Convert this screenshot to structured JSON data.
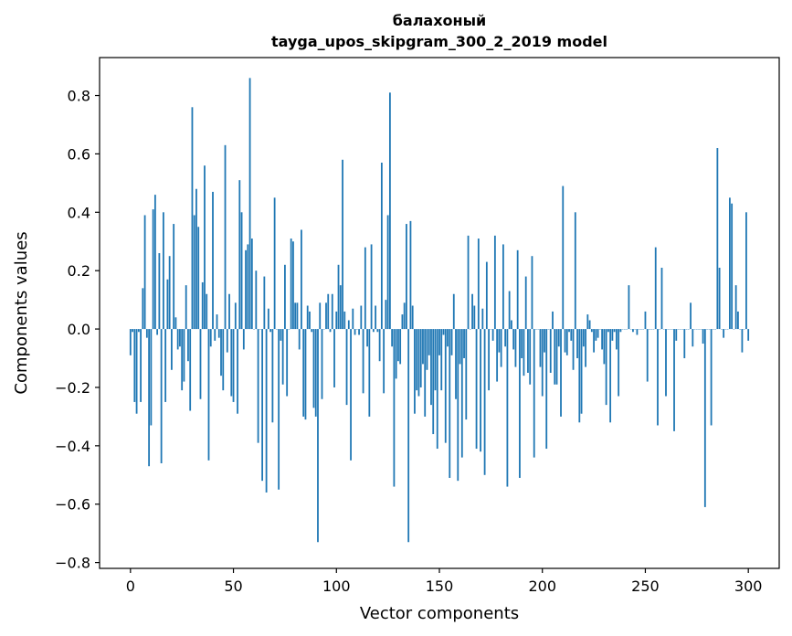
{
  "chart_data": {
    "type": "bar",
    "title": "балахоный",
    "subtitle": "tayga_upos_skipgram_300_2_2019 model",
    "xlabel": "Vector components",
    "ylabel": "Components values",
    "xlim": [
      -15,
      315
    ],
    "ylim": [
      -0.82,
      0.93
    ],
    "xticks": [
      0,
      50,
      100,
      150,
      200,
      250,
      300
    ],
    "yticks": [
      -0.8,
      -0.6,
      -0.4,
      -0.2,
      0.0,
      0.2,
      0.4,
      0.6,
      0.8
    ],
    "xtick_labels": [
      "0",
      "50",
      "100",
      "150",
      "200",
      "250",
      "300"
    ],
    "ytick_labels": [
      "−0.8",
      "−0.6",
      "−0.4",
      "−0.2",
      "0.0",
      "0.2",
      "0.4",
      "0.6",
      "0.8"
    ],
    "bar_color": "#1f77b4",
    "grid": false,
    "series": [
      {
        "values": [
          -0.09,
          -0.01,
          -0.25,
          -0.29,
          -0.01,
          -0.25,
          0.14,
          0.39,
          -0.03,
          -0.47,
          -0.33,
          0.41,
          0.46,
          -0.02,
          0.26,
          -0.46,
          0.4,
          -0.25,
          0.17,
          0.25,
          -0.14,
          0.36,
          0.04,
          -0.07,
          -0.06,
          -0.21,
          -0.18,
          0.15,
          -0.11,
          -0.28,
          0.76,
          0.39,
          0.48,
          0.35,
          -0.24,
          0.16,
          0.56,
          0.12,
          -0.45,
          -0.06,
          0.47,
          -0.04,
          0.05,
          -0.03,
          -0.16,
          -0.21,
          0.63,
          -0.08,
          0.12,
          -0.23,
          -0.25,
          0.09,
          -0.29,
          0.51,
          0.4,
          -0.07,
          0.27,
          0.29,
          0.86,
          0.31,
          0.0,
          0.2,
          -0.39,
          0.0,
          -0.52,
          0.18,
          -0.56,
          0.07,
          -0.01,
          -0.32,
          0.45,
          0.0,
          -0.55,
          -0.04,
          -0.19,
          0.22,
          -0.23,
          0.0,
          0.31,
          0.3,
          0.09,
          0.09,
          -0.07,
          0.34,
          -0.3,
          -0.31,
          0.08,
          0.06,
          -0.01,
          -0.27,
          -0.3,
          -0.73,
          0.09,
          -0.24,
          0.0,
          0.09,
          0.12,
          -0.01,
          0.12,
          -0.2,
          0.06,
          0.22,
          0.15,
          0.58,
          0.06,
          -0.26,
          0.03,
          -0.45,
          0.07,
          -0.02,
          0.0,
          -0.02,
          0.08,
          -0.22,
          0.28,
          -0.06,
          -0.3,
          0.29,
          -0.01,
          0.08,
          -0.01,
          -0.11,
          0.57,
          -0.22,
          0.1,
          0.39,
          0.81,
          -0.06,
          -0.54,
          -0.17,
          -0.11,
          -0.12,
          0.05,
          0.09,
          0.36,
          -0.73,
          0.37,
          0.08,
          -0.29,
          -0.21,
          -0.23,
          -0.2,
          -0.12,
          -0.3,
          -0.14,
          -0.09,
          -0.26,
          -0.36,
          -0.21,
          -0.41,
          -0.09,
          -0.21,
          -0.02,
          -0.39,
          -0.06,
          -0.51,
          -0.09,
          0.12,
          -0.24,
          -0.52,
          -0.12,
          -0.44,
          -0.1,
          -0.31,
          0.32,
          0.0,
          0.12,
          0.08,
          -0.41,
          0.31,
          -0.42,
          0.07,
          -0.5,
          0.23,
          -0.21,
          0.0,
          -0.04,
          0.32,
          -0.18,
          -0.08,
          -0.13,
          0.29,
          -0.06,
          -0.54,
          0.13,
          0.03,
          -0.07,
          -0.13,
          0.27,
          -0.51,
          -0.1,
          -0.16,
          0.18,
          -0.15,
          -0.19,
          0.25,
          -0.44,
          0.0,
          0.0,
          -0.13,
          -0.23,
          -0.08,
          -0.41,
          0.0,
          -0.15,
          0.06,
          -0.19,
          -0.19,
          -0.06,
          -0.3,
          0.49,
          -0.08,
          -0.09,
          -0.01,
          -0.04,
          -0.14,
          0.4,
          -0.1,
          -0.32,
          -0.29,
          -0.06,
          -0.13,
          0.05,
          0.03,
          -0.01,
          -0.08,
          -0.04,
          -0.03,
          0.0,
          -0.07,
          -0.12,
          -0.26,
          -0.01,
          -0.32,
          -0.04,
          -0.01,
          -0.07,
          -0.23,
          -0.01,
          0.0,
          0.0,
          0.0,
          0.15,
          0.0,
          -0.01,
          0.0,
          -0.02,
          0.0,
          0.0,
          0.0,
          0.06,
          -0.18,
          0.0,
          0.0,
          0.0,
          0.28,
          -0.33,
          0.0,
          0.21,
          0.0,
          -0.23,
          0.0,
          0.0,
          0.0,
          -0.35,
          -0.04,
          0.0,
          0.0,
          0.0,
          -0.1,
          0.0,
          0.0,
          0.09,
          -0.06,
          0.0,
          0.0,
          0.0,
          0.0,
          -0.05,
          -0.61,
          0.0,
          0.0,
          -0.33,
          0.0,
          0.0,
          0.62,
          0.21,
          0.0,
          -0.03,
          0.0,
          0.0,
          0.45,
          0.43,
          0.0,
          0.15,
          0.06,
          0.0,
          -0.08,
          0.0,
          0.4,
          -0.04
        ]
      }
    ]
  }
}
